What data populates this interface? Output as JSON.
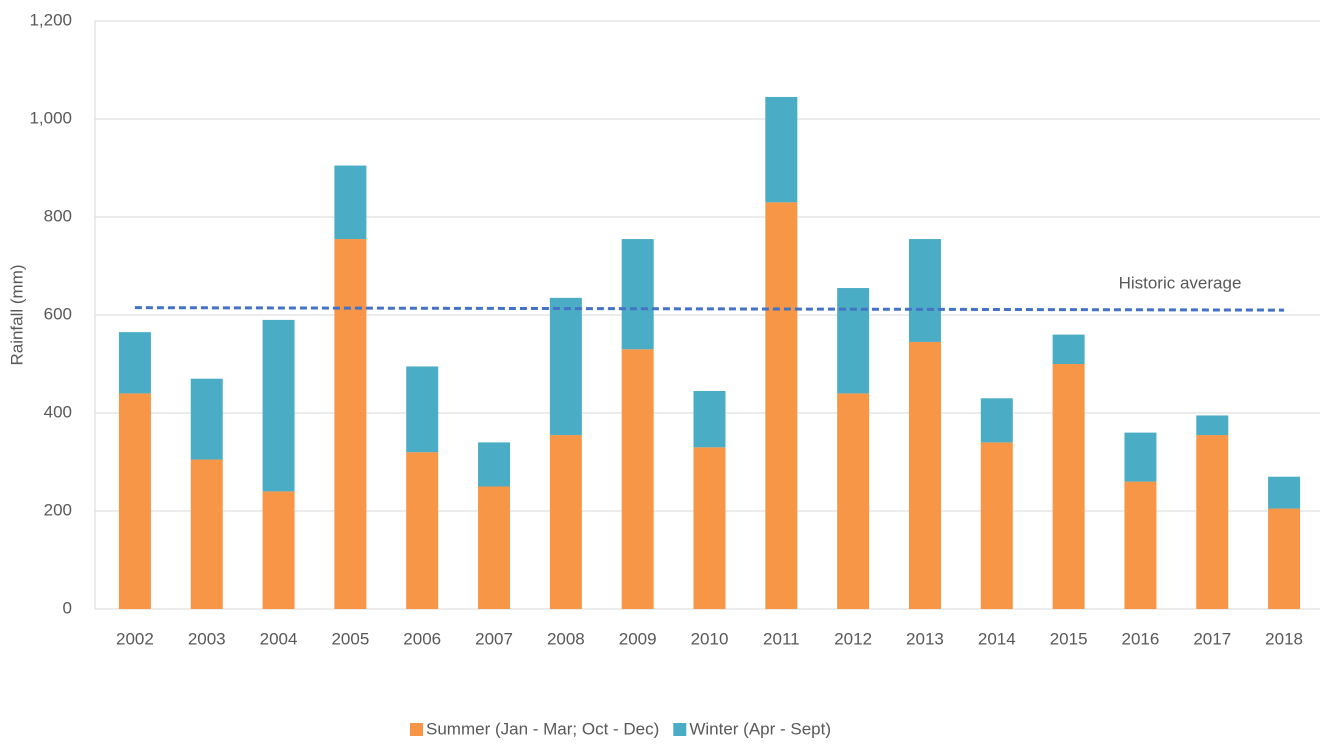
{
  "chart_data": {
    "type": "stacked_bar",
    "y_label": "Rainfall (mm)",
    "categories": [
      "2002",
      "2003",
      "2004",
      "2005",
      "2006",
      "2007",
      "2008",
      "2009",
      "2010",
      "2011",
      "2012",
      "2013",
      "2014",
      "2015",
      "2016",
      "2017",
      "2018"
    ],
    "series": [
      {
        "name": "Summer (Jan - Mar; Oct - Dec)",
        "color": "#f79646",
        "values": [
          440,
          305,
          240,
          755,
          320,
          250,
          355,
          530,
          330,
          830,
          440,
          545,
          340,
          500,
          260,
          355,
          205
        ]
      },
      {
        "name": "Winter (Apr - Sept)",
        "color": "#4bacc6",
        "values": [
          125,
          165,
          350,
          150,
          175,
          90,
          280,
          225,
          115,
          215,
          215,
          210,
          90,
          60,
          100,
          40,
          65
        ]
      }
    ],
    "average": {
      "label": "Historic average",
      "color": "#4472c4",
      "values": [
        615,
        610
      ]
    },
    "ylim": [
      0,
      1200
    ],
    "yticks": [
      0,
      200,
      400,
      600,
      800,
      {
        "value": 1000,
        "label": "1,000"
      },
      {
        "value": 1200,
        "label": "1,200"
      }
    ],
    "grid": true,
    "legend": "bottom"
  }
}
